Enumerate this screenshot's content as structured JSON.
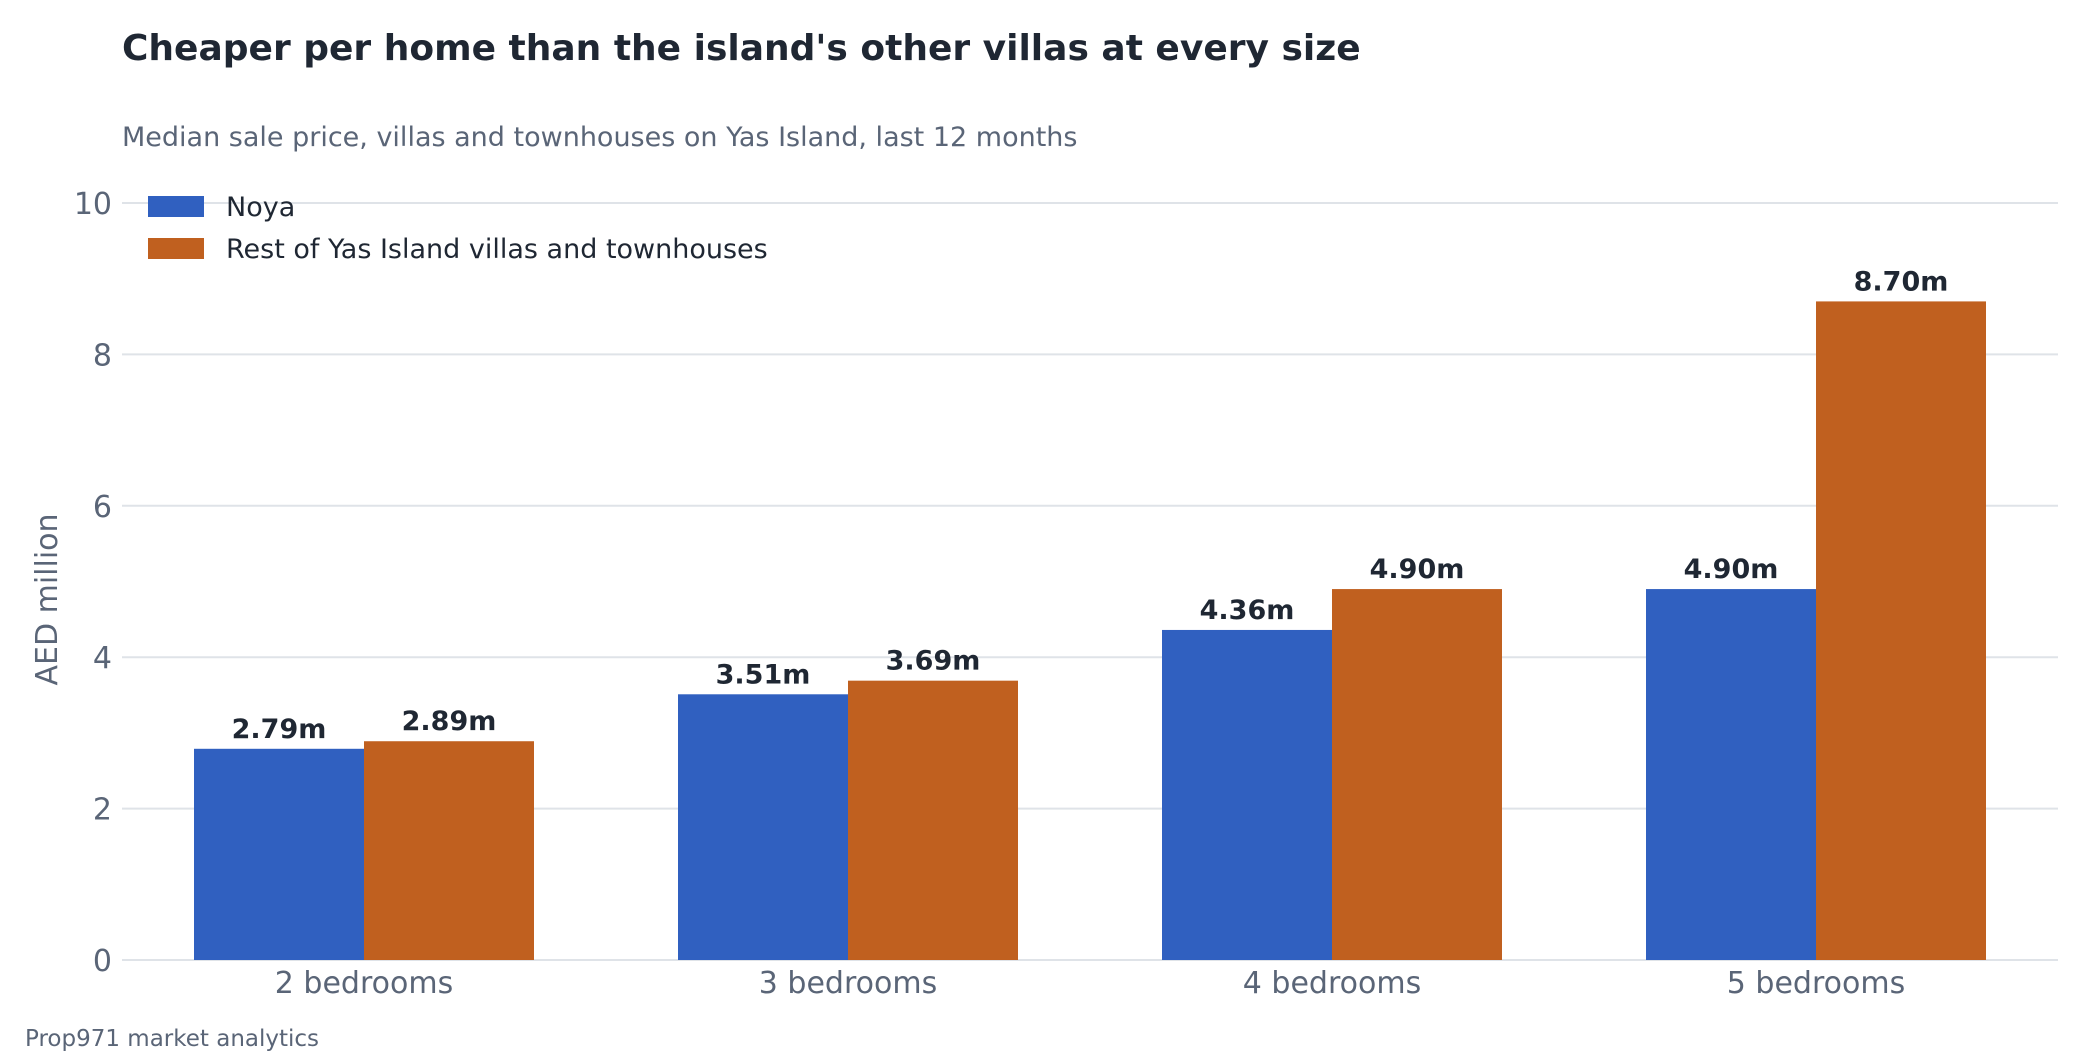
{
  "chart_data": {
    "type": "bar",
    "title": "Cheaper per home than the island's other villas at every size",
    "subtitle": "Median sale price, villas and townhouses on Yas Island, last 12 months",
    "xlabel": "",
    "ylabel": "AED million",
    "ylim": [
      0,
      10
    ],
    "yticks": [
      0,
      2,
      4,
      6,
      8,
      10
    ],
    "grid": true,
    "legend_position": "top-left",
    "categories": [
      "2 bedrooms",
      "3 bedrooms",
      "4 bedrooms",
      "5 bedrooms"
    ],
    "series": [
      {
        "name": "Noya",
        "color": "#3060c0",
        "values": [
          2.79,
          3.51,
          4.36,
          4.9
        ],
        "labels": [
          "2.79m",
          "3.51m",
          "4.36m",
          "4.90m"
        ]
      },
      {
        "name": "Rest of Yas Island villas and townhouses",
        "color": "#c0601f",
        "values": [
          2.89,
          3.69,
          4.9,
          8.7
        ],
        "labels": [
          "2.89m",
          "3.69m",
          "4.90m",
          "8.70m"
        ]
      }
    ]
  },
  "footer": {
    "source": "Prop971 market analytics"
  }
}
